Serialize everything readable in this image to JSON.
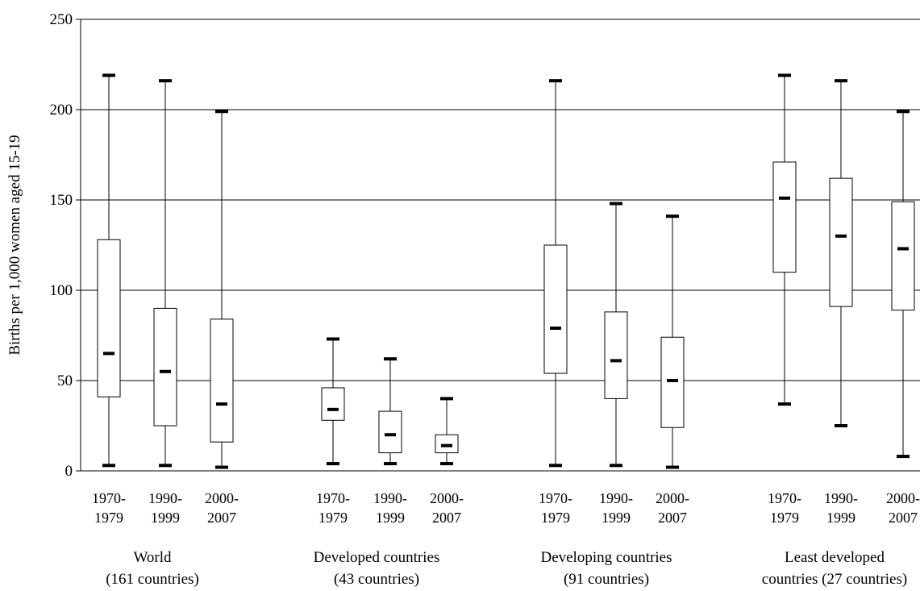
{
  "chart_data": {
    "type": "boxplot",
    "ylabel": "Births per 1,000 women aged 15-19",
    "ylim": [
      0,
      250
    ],
    "yticks": [
      0,
      50,
      100,
      150,
      200,
      250
    ],
    "grid": "horizontal",
    "groups": [
      {
        "label_lines": [
          "World",
          "(161 countries)"
        ],
        "boxes": [
          {
            "period_lines": [
              "1970-",
              "1979"
            ],
            "min": 3,
            "q1": 41,
            "median": 65,
            "q3": 128,
            "max": 219
          },
          {
            "period_lines": [
              "1990-",
              "1999"
            ],
            "min": 3,
            "q1": 25,
            "median": 55,
            "q3": 90,
            "max": 216
          },
          {
            "period_lines": [
              "2000-",
              "2007"
            ],
            "min": 2,
            "q1": 16,
            "median": 37,
            "q3": 84,
            "max": 199
          }
        ]
      },
      {
        "label_lines": [
          "Developed countries",
          "(43 countries)"
        ],
        "boxes": [
          {
            "period_lines": [
              "1970-",
              "1979"
            ],
            "min": 4,
            "q1": 28,
            "median": 34,
            "q3": 46,
            "max": 73
          },
          {
            "period_lines": [
              "1990-",
              "1999"
            ],
            "min": 4,
            "q1": 10,
            "median": 20,
            "q3": 33,
            "max": 62
          },
          {
            "period_lines": [
              "2000-",
              "2007"
            ],
            "min": 4,
            "q1": 10,
            "median": 14,
            "q3": 20,
            "max": 40
          }
        ]
      },
      {
        "label_lines": [
          "Developing countries",
          "(91 countries)"
        ],
        "boxes": [
          {
            "period_lines": [
              "1970-",
              "1979"
            ],
            "min": 3,
            "q1": 54,
            "median": 79,
            "q3": 125,
            "max": 216
          },
          {
            "period_lines": [
              "1990-",
              "1999"
            ],
            "min": 3,
            "q1": 40,
            "median": 61,
            "q3": 88,
            "max": 148
          },
          {
            "period_lines": [
              "2000-",
              "2007"
            ],
            "min": 2,
            "q1": 24,
            "median": 50,
            "q3": 74,
            "max": 141
          }
        ]
      },
      {
        "label_lines": [
          "Least developed",
          "countries (27 countries)"
        ],
        "boxes": [
          {
            "period_lines": [
              "1970-",
              "1979"
            ],
            "min": 37,
            "q1": 110,
            "median": 151,
            "q3": 171,
            "max": 219
          },
          {
            "period_lines": [
              "1990-",
              "1999"
            ],
            "min": 25,
            "q1": 91,
            "median": 130,
            "q3": 162,
            "max": 216
          },
          {
            "period_lines": [
              "2000-",
              "2007"
            ],
            "min": 8,
            "q1": 89,
            "median": 123,
            "q3": 149,
            "max": 199
          }
        ]
      }
    ]
  }
}
